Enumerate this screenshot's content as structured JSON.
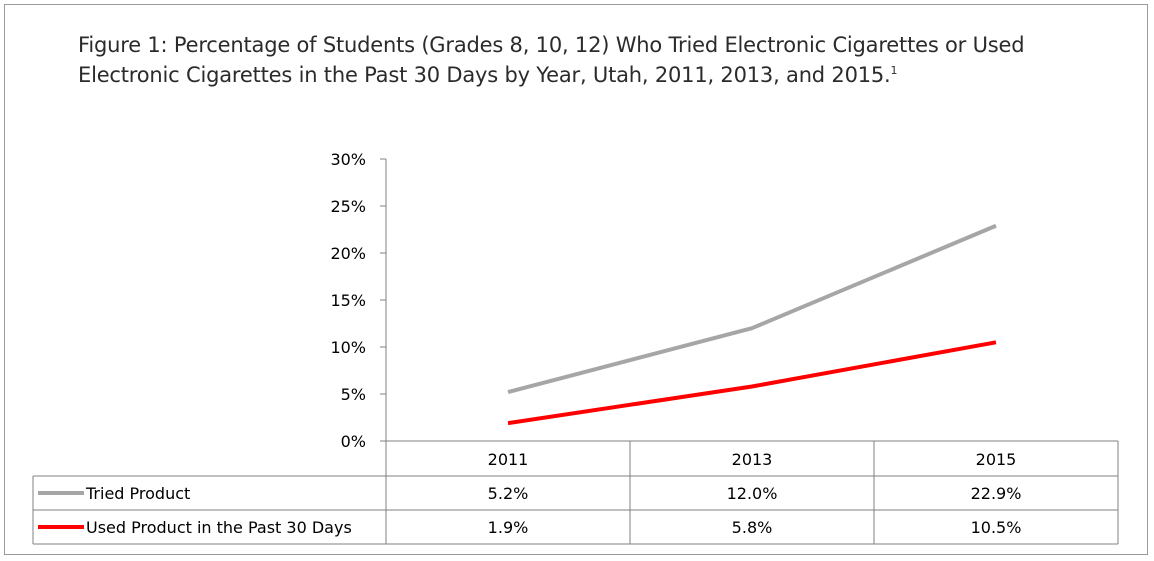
{
  "figure": {
    "title": "Figure 1: Percentage of Students (Grades 8, 10, 12) Who Tried Electronic Cigarettes or Used Electronic Cigarettes in the Past 30 Days by Year, Utah, 2011, 2013, and 2015.",
    "footnote_marker": "1"
  },
  "chart_data": {
    "type": "line",
    "title": "Figure 1: Percentage of Students (Grades 8, 10, 12) Who Tried Electronic Cigarettes or Used Electronic Cigarettes in the Past 30 Days by Year, Utah, 2011, 2013, and 2015.",
    "xlabel": "",
    "ylabel": "",
    "ylim": [
      0,
      30
    ],
    "yticks": [
      "0%",
      "5%",
      "10%",
      "15%",
      "20%",
      "25%",
      "30%"
    ],
    "ytick_values": [
      0,
      5,
      10,
      15,
      20,
      25,
      30
    ],
    "categories": [
      "2011",
      "2013",
      "2015"
    ],
    "series": [
      {
        "name": "Tried Product",
        "values": [
          5.2,
          12.0,
          22.9
        ],
        "labels": [
          "5.2%",
          "12.0%",
          "22.9%"
        ],
        "color": "#a6a6a6"
      },
      {
        "name": "Used Product in the Past 30 Days",
        "values": [
          1.9,
          5.8,
          10.5
        ],
        "labels": [
          "1.9%",
          "5.8%",
          "10.5%"
        ],
        "color": "#ff0000"
      }
    ],
    "grid": false,
    "legend": "data-table-below"
  }
}
